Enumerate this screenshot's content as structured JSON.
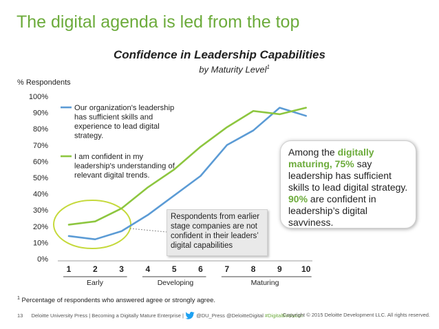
{
  "slide": {
    "title": "The digital agenda is led from the top",
    "footnote_mark": "1",
    "footnote": "Percentage of respondents who answered agree or strongly agree."
  },
  "chart_data": {
    "type": "line",
    "title": "Confidence in Leadership Capabilities",
    "subtitle": "by Maturity Level",
    "subtitle_mark": "1",
    "ylabel": "% Respondents",
    "x": [
      1,
      2,
      3,
      4,
      5,
      6,
      7,
      8,
      9,
      10
    ],
    "x_tick_labels": [
      "1",
      "2",
      "3",
      "4",
      "5",
      "6",
      "7",
      "8",
      "9",
      "10"
    ],
    "y_tick_labels": [
      "0%",
      "10%",
      "20%",
      "30%",
      "40%",
      "50%",
      "60%",
      "70%",
      "80%",
      "90%",
      "100%"
    ],
    "ylim": [
      0,
      100
    ],
    "series": [
      {
        "name": "Our organization's leadership has sufficient skills and experience to lead digital strategy.",
        "legend_lines": [
          "Our organization's leadership",
          "has sufficient skills and",
          "experience to lead digital",
          "strategy."
        ],
        "color": "#5b9bd5",
        "values": [
          14,
          12,
          17,
          27,
          39,
          51,
          70,
          79,
          93,
          88
        ]
      },
      {
        "name": "I am confident in my leadership's understanding of relevant digital trends.",
        "legend_lines": [
          "I am confident in my",
          "leadership's understanding of",
          "relevant digital trends."
        ],
        "color": "#8dc63f",
        "values": [
          21,
          23,
          31,
          44,
          55,
          69,
          81,
          91,
          89,
          93
        ]
      }
    ],
    "x_groups": [
      {
        "label": "Early"
      },
      {
        "label": "Developing"
      },
      {
        "label": "Maturing"
      }
    ],
    "highlight_color": "#c5d93b",
    "annotation_lines": [
      "Respondents from earlier",
      "stage companies are not",
      "confident in their leaders’",
      "digital capabilities"
    ]
  },
  "insight": {
    "t1": "Among the ",
    "h1": "digitally maturing, 75%",
    "t2": " say leadership has sufficient skills to lead digital strategy. ",
    "h2": "90%",
    "t3": " are confident in leadership’s digital savviness."
  },
  "footer": {
    "page_number": "13",
    "text": "Deloitte University Press | Becoming a Digitally Mature Enterprise |",
    "handles": "@DU_Press @DeloitteDigital",
    "hashtag": "#DigitalEvolution",
    "copyright": "Copyright © 2015 Deloitte Development LLC. All rights reserved."
  }
}
